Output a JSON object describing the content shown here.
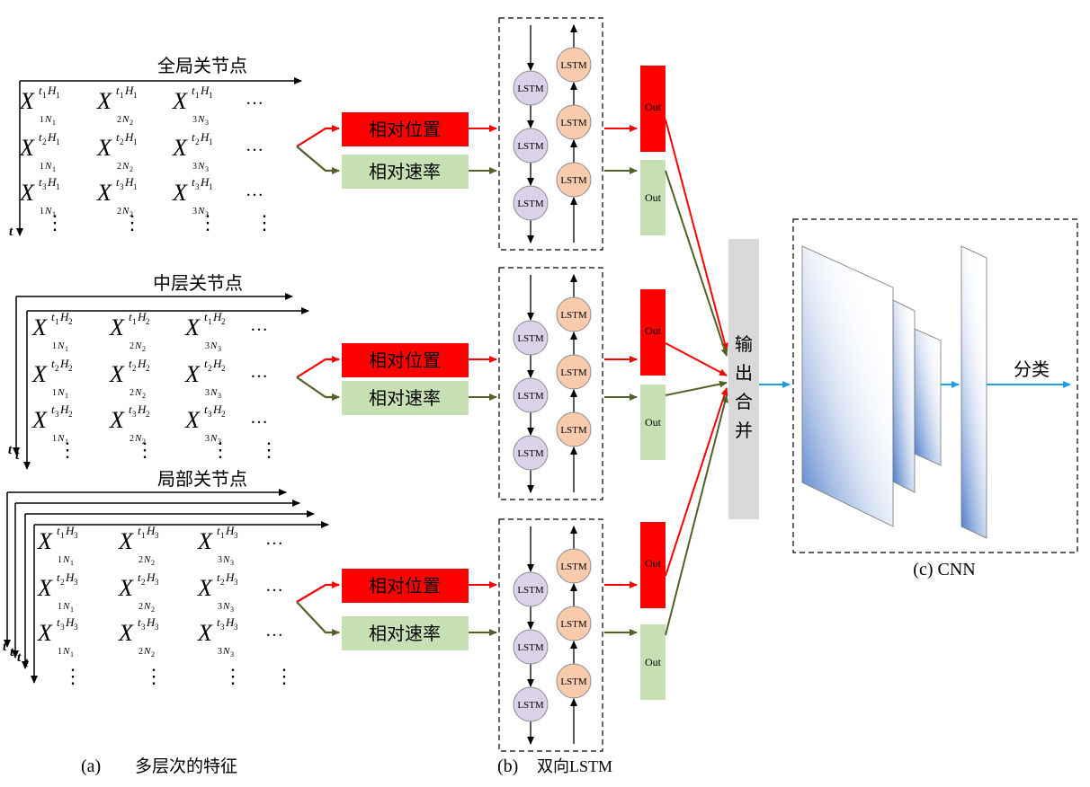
{
  "sections": [
    {
      "title": "全局关节点",
      "h_sub": "1"
    },
    {
      "title": "中层关节点",
      "h_sub": "2"
    },
    {
      "title": "局部关节点",
      "h_sub": "3"
    }
  ],
  "matrix": {
    "symbol": "X",
    "row_t_subs": [
      "1",
      "2",
      "3"
    ],
    "col_n_subs": [
      "1",
      "2",
      "3"
    ],
    "col_numbers": [
      "1",
      "2",
      "3"
    ],
    "ellipsis": "…",
    "vdots": "⋮",
    "t_axis": "t",
    "H": "H",
    "N": "N"
  },
  "feature_boxes": {
    "position": "相对位置",
    "velocity": "相对速率"
  },
  "lstm_label": "LSTM",
  "out_label": "Out",
  "merge_label": [
    "输",
    "出",
    "合",
    "并"
  ],
  "classify_label": "分类",
  "captions": {
    "a_tag": "(a)",
    "a_text": "多层次的特征",
    "b_tag": "(b)",
    "b_text": "双向LSTM",
    "c_text": "(c) CNN"
  },
  "colors": {
    "red_box": "#ff0000",
    "green_box": "#c6e0b4",
    "red_arrow": "#ff0000",
    "green_arrow": "#4f6228",
    "lstm_fwd": "#d9d2e9",
    "lstm_bwd": "#f8cbad",
    "merge_bar": "#d9d9d9",
    "cnn_arrow": "#1ba1e2",
    "layer_blue": "#3d70c4"
  }
}
